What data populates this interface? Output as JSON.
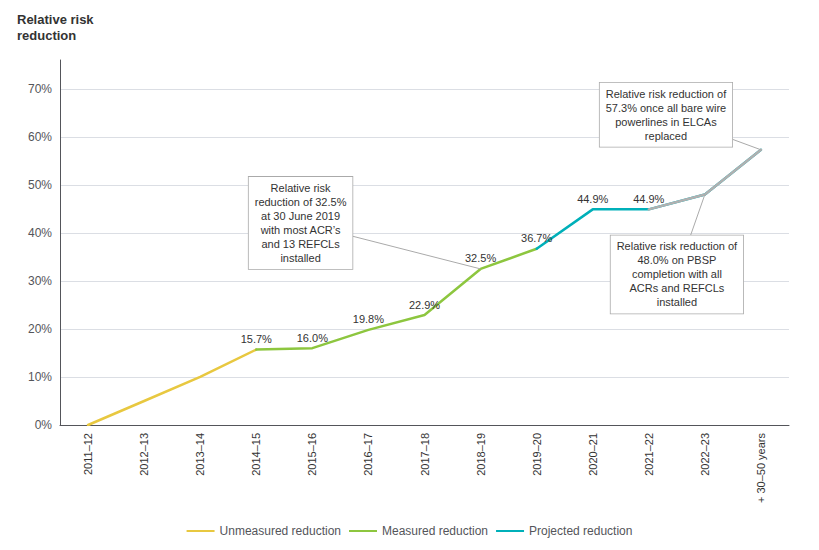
{
  "chart_data": {
    "type": "line",
    "ylabel": "Relative risk\nreduction",
    "categories": [
      "2011–12",
      "2012–13",
      "2013–14",
      "2014–15",
      "2015–16",
      "2016–17",
      "2017–18",
      "2018–19",
      "2019–20",
      "2020–21",
      "2021–22",
      "2022–23",
      "+ 30–50 years"
    ],
    "series": [
      {
        "name": "Unmeasured reduction",
        "color": "#E8C840",
        "values": [
          0.0,
          0.05,
          0.1,
          0.157,
          null,
          null,
          null,
          null,
          null,
          null,
          null,
          null,
          null
        ]
      },
      {
        "name": "Measured reduction",
        "color": "#8DC63F",
        "values": [
          null,
          null,
          null,
          0.157,
          0.16,
          0.198,
          0.229,
          0.325,
          0.367,
          null,
          null,
          null,
          null
        ],
        "value_labels": [
          null,
          null,
          null,
          "15.7%",
          "16.0%",
          "19.8%",
          "22.9%",
          "32.5%",
          "36.7%",
          null,
          null,
          null,
          null
        ]
      },
      {
        "name": "Projected reduction",
        "color": "#00B0B9",
        "values": [
          null,
          null,
          null,
          null,
          null,
          null,
          null,
          null,
          0.367,
          0.449,
          0.449,
          0.48,
          0.573
        ],
        "value_labels": [
          null,
          null,
          null,
          null,
          null,
          null,
          null,
          null,
          null,
          "44.9%",
          "44.9%",
          null,
          null
        ]
      },
      {
        "color": "#B0B0B0",
        "values": [
          null,
          null,
          null,
          null,
          null,
          null,
          null,
          null,
          null,
          null,
          0.449,
          0.48,
          0.573
        ]
      }
    ],
    "ylim": [
      0.0,
      0.76
    ],
    "yticks": [
      {
        "value": 0.0,
        "label": "0%"
      },
      {
        "value": 0.1,
        "label": "10%"
      },
      {
        "value": 0.2,
        "label": "20%"
      },
      {
        "value": 0.3,
        "label": "30%"
      },
      {
        "value": 0.4,
        "label": "40%"
      },
      {
        "value": 0.5,
        "label": "50%"
      },
      {
        "value": 0.6,
        "label": "60%"
      },
      {
        "value": 0.7,
        "label": "70%"
      }
    ],
    "grid": true,
    "legend": "bottom",
    "annotations": [
      {
        "text": "Relative risk\nreduction of 32.5%\nat 30 June 2019\nwith most ACR’s\nand 13 REFCLs\ninstalled",
        "x": "2018–19",
        "y": 0.325
      },
      {
        "text": "Relative risk reduction of\n57.3% once all bare wire\npowerlines in ELCAs\nreplaced",
        "x": "+ 30–50 years",
        "y": 0.573
      },
      {
        "text": "Relative risk reduction of\n48.0% on PBSP\ncompletion with all\nACRs and REFCLs\ninstalled",
        "x": "2022–23",
        "y": 0.48
      }
    ]
  }
}
